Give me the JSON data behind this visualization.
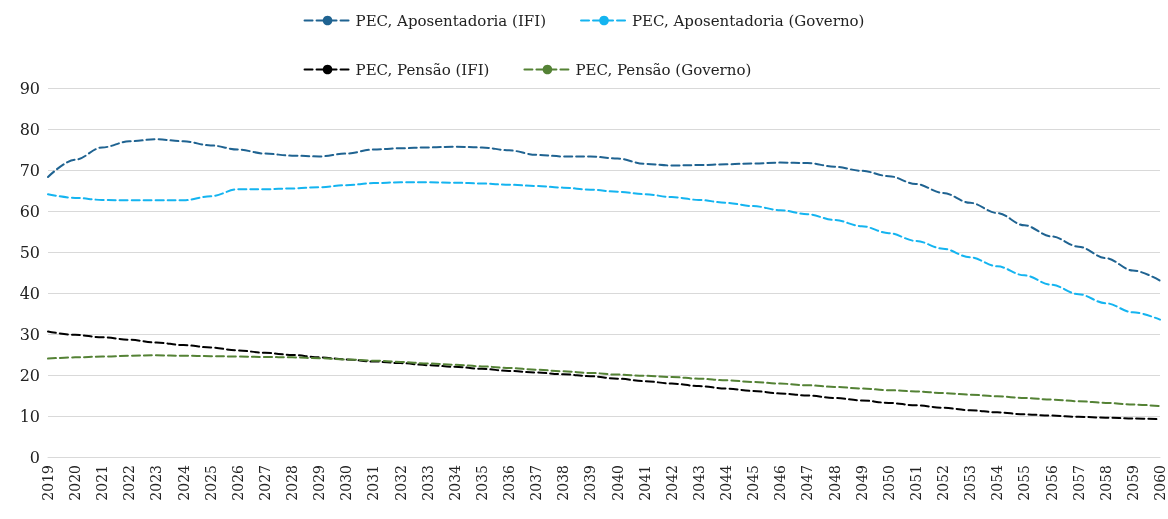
{
  "chart_data": {
    "type": "line",
    "categories": [
      "2019",
      "2020",
      "2021",
      "2022",
      "2023",
      "2024",
      "2025",
      "2026",
      "2027",
      "2028",
      "2029",
      "2030",
      "2031",
      "2032",
      "2033",
      "2034",
      "2035",
      "2036",
      "2037",
      "2038",
      "2039",
      "2040",
      "2041",
      "2042",
      "2043",
      "2044",
      "2045",
      "2046",
      "2047",
      "2048",
      "2049",
      "2050",
      "2051",
      "2052",
      "2053",
      "2054",
      "2055",
      "2056",
      "2057",
      "2058",
      "2059",
      "2060"
    ],
    "series": [
      {
        "name": "PEC, Aposentadoria (IFI)",
        "color": "#1f6391",
        "values": [
          68.3,
          72.5,
          75.5,
          77,
          77.5,
          77,
          76,
          75,
          74,
          73.5,
          73.3,
          74,
          75,
          75.3,
          75.5,
          75.7,
          75.5,
          74.8,
          73.7,
          73.3,
          73.3,
          72.8,
          71.5,
          71.1,
          71.2,
          71.4,
          71.6,
          71.8,
          71.7,
          70.8,
          69.8,
          68.5,
          66.6,
          64.4,
          62,
          59.5,
          56.5,
          53.8,
          51.3,
          48.5,
          45.5,
          43
        ]
      },
      {
        "name": "PEC, Aposentadoria (Governo)",
        "color": "#14b4f0",
        "values": [
          64.1,
          63.2,
          62.7,
          62.6,
          62.6,
          62.6,
          63.6,
          65.3,
          65.3,
          65.5,
          65.8,
          66.3,
          66.8,
          67,
          67,
          66.9,
          66.7,
          66.4,
          66.1,
          65.7,
          65.2,
          64.7,
          64.1,
          63.4,
          62.7,
          62,
          61.2,
          60.2,
          59.2,
          57.8,
          56.3,
          54.6,
          52.7,
          50.8,
          48.7,
          46.5,
          44.3,
          42,
          39.7,
          37.5,
          35.3,
          33.5
        ]
      },
      {
        "name": "PEC, Pensão (IFI)",
        "color": "#000000",
        "values": [
          30.6,
          29.8,
          29.2,
          28.6,
          27.9,
          27.3,
          26.7,
          26,
          25.4,
          24.9,
          24.3,
          23.8,
          23.3,
          22.9,
          22.4,
          22,
          21.5,
          21,
          20.6,
          20.2,
          19.7,
          19.1,
          18.5,
          17.9,
          17.3,
          16.7,
          16.1,
          15.5,
          15,
          14.4,
          13.8,
          13.2,
          12.6,
          12,
          11.4,
          10.9,
          10.4,
          10.1,
          9.8,
          9.6,
          9.4,
          9.2
        ]
      },
      {
        "name": "PEC, Pensão (Governo)",
        "color": "#548235",
        "values": [
          24,
          24.3,
          24.5,
          24.7,
          24.8,
          24.7,
          24.6,
          24.5,
          24.4,
          24.3,
          24.1,
          23.8,
          23.5,
          23.2,
          22.8,
          22.5,
          22.1,
          21.7,
          21.3,
          20.9,
          20.5,
          20.1,
          19.8,
          19.5,
          19.1,
          18.7,
          18.3,
          17.9,
          17.5,
          17.1,
          16.7,
          16.3,
          16,
          15.6,
          15.2,
          14.8,
          14.4,
          14,
          13.6,
          13.2,
          12.8,
          12.4
        ]
      }
    ],
    "ylim": [
      0,
      90
    ],
    "yticks": [
      0,
      10,
      20,
      30,
      40,
      50,
      60,
      70,
      80,
      90
    ],
    "grid": "y",
    "legend": "top",
    "line_style": "dashed",
    "marker": "none"
  }
}
